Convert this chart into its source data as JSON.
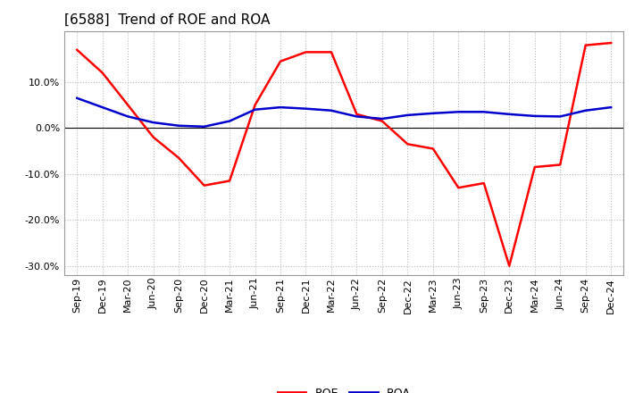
{
  "title": "[6588]  Trend of ROE and ROA",
  "labels": [
    "Sep-19",
    "Dec-19",
    "Mar-20",
    "Jun-20",
    "Sep-20",
    "Dec-20",
    "Mar-21",
    "Jun-21",
    "Sep-21",
    "Dec-21",
    "Mar-22",
    "Jun-22",
    "Sep-22",
    "Dec-22",
    "Mar-23",
    "Jun-23",
    "Sep-23",
    "Dec-23",
    "Mar-24",
    "Jun-24",
    "Sep-24",
    "Dec-24"
  ],
  "roe_values": [
    17.0,
    12.0,
    5.0,
    -2.0,
    -6.5,
    -12.5,
    -11.5,
    5.0,
    14.5,
    16.5,
    16.5,
    3.0,
    1.5,
    -3.5,
    -4.5,
    -13.0,
    -12.0,
    -30.0,
    -8.5,
    -8.0,
    18.0,
    18.5
  ],
  "roa_values": [
    6.5,
    4.5,
    2.5,
    1.2,
    0.5,
    0.3,
    1.5,
    4.0,
    4.5,
    4.2,
    3.8,
    2.5,
    2.0,
    2.8,
    3.2,
    3.5,
    3.5,
    3.0,
    2.6,
    2.5,
    3.8,
    4.5
  ],
  "roe_color": "#FF0000",
  "roa_color": "#0000CC",
  "bg_color": "#FFFFFF",
  "grid_color": "#BBBBBB",
  "ylim": [
    -32,
    21
  ],
  "yticks": [
    -30.0,
    -20.0,
    -10.0,
    0.0,
    10.0
  ],
  "title_fontsize": 11,
  "tick_fontsize": 8,
  "line_width": 1.8
}
